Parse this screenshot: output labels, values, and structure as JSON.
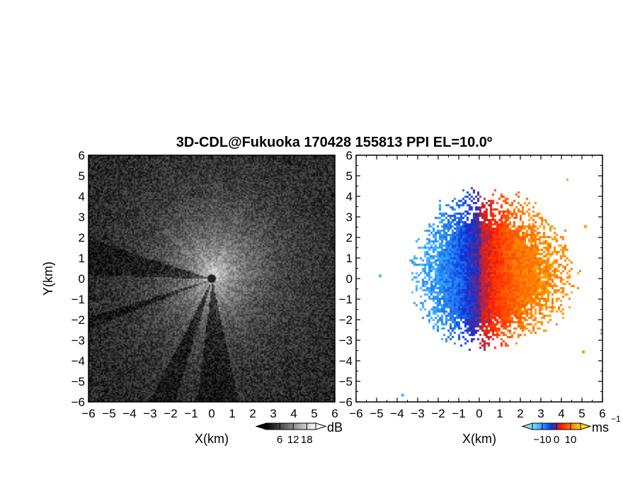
{
  "title": "3D-CDL@Fukuoka 170428 155813 PPI EL=10.0º",
  "chart_data": [
    {
      "type": "heatmap",
      "quantity": "reflectivity",
      "xlabel": "X(km)",
      "ylabel": "Y(km)",
      "xlim": [
        -6,
        6
      ],
      "ylim": [
        -6,
        6
      ],
      "xticks": [
        "−6",
        "−5",
        "−4",
        "−3",
        "−2",
        "−1",
        "0",
        "1",
        "2",
        "3",
        "4",
        "5",
        "6"
      ],
      "yticks": [
        "6",
        "5",
        "4",
        "3",
        "2",
        "1",
        "0",
        "−1",
        "−2",
        "−3",
        "−4",
        "−5",
        "−6"
      ],
      "colorbar": {
        "unit": "dB",
        "ticks": [
          "6",
          "12",
          "18"
        ],
        "tick_values": [
          6,
          12,
          18
        ],
        "range": [
          0,
          22
        ],
        "colormap": [
          "#000000",
          "#ffffff"
        ]
      },
      "radar_center": [
        0,
        0
      ],
      "shadow_sectors_deg": [
        [
          162,
          178
        ],
        [
          197,
          202
        ],
        [
          243,
          253
        ],
        [
          263,
          282
        ]
      ]
    },
    {
      "type": "heatmap",
      "quantity": "doppler velocity",
      "xlabel": "X(km)",
      "xlim": [
        -6,
        6
      ],
      "ylim": [
        -6,
        6
      ],
      "xticks": [
        "−6",
        "−5",
        "−4",
        "−3",
        "−2",
        "−1",
        "0",
        "1",
        "2",
        "3",
        "4",
        "5",
        "6"
      ],
      "yticks": [
        "6",
        "5",
        "4",
        "3",
        "2",
        "1",
        "0",
        "−1",
        "−2",
        "−3",
        "−4",
        "−5",
        "−6"
      ],
      "colorbar": {
        "unit": "ms",
        "unit_exponent": "−1",
        "ticks": [
          "−10",
          "0",
          "10"
        ],
        "tick_values": [
          -10,
          0,
          10
        ],
        "range": [
          -17,
          17
        ],
        "colormap": [
          "#7fe0ff",
          "#2fa0ff",
          "#0a2fd8",
          "#ff1e00",
          "#ff7a00",
          "#ffd400"
        ]
      },
      "velocity_pattern": "negative (toward radar) west of x=0, positive (away) east of x=0",
      "echo_extent_km": {
        "x": [
          -3.8,
          5.0
        ],
        "y": [
          -4.0,
          5.0
        ]
      }
    }
  ]
}
